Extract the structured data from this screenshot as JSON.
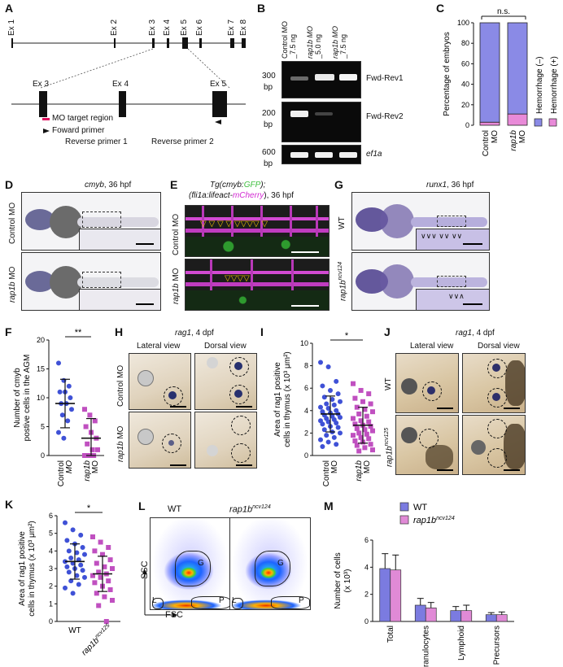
{
  "panels": {
    "A": "A",
    "B": "B",
    "C": "C",
    "D": "D",
    "E": "E",
    "F": "F",
    "G": "G",
    "H": "H",
    "I": "I",
    "J": "J",
    "K": "K",
    "L": "L",
    "M": "M"
  },
  "panelA": {
    "exons_top": [
      "Ex 1",
      "Ex 2",
      "Ex 3",
      "Ex 4",
      "Ex 5",
      "Ex 6",
      "Ex 7",
      "Ex 8"
    ],
    "exons_zoom": [
      "Ex 3",
      "Ex 4",
      "Ex 5"
    ],
    "mo_target": "MO target region",
    "forward_primer": "Foward primer",
    "reverse_primer_1": "Reverse primer 1",
    "reverse_primer_2": "Reverse primer 2",
    "colors": {
      "mo_target": "#e0115f"
    }
  },
  "panelB": {
    "lanes": [
      "Control MO",
      "_7.5 ng",
      "rap1b MO",
      "_5.0 ng",
      "rap1b MO",
      "_7.5 ng"
    ],
    "bp300": "300",
    "bp200": "200",
    "bp600": "600",
    "bp": "bp",
    "row1": "Fwd-Rev1",
    "row2": "Fwd-Rev2",
    "row3": "ef1a"
  },
  "panelC": {
    "ns": "n.s.",
    "ylabel": "Percentage of embryos",
    "ticks": [
      "0",
      "20",
      "40",
      "60",
      "80",
      "100"
    ],
    "xcat1a": "Control",
    "xcat1b": "MO",
    "xcat2a": "rap1b",
    "xcat2b": "MO",
    "legend_neg": "Hemorrhage (–)",
    "legend_pos": "Hemorrhage (+)"
  },
  "panelD": {
    "title_gene": "cmyb",
    "title_rest": ", 36 hpf",
    "row1": "Control MO",
    "row2a": "rap1b",
    "row2b": " MO"
  },
  "panelE": {
    "title_l1_a": "Tg(",
    "title_l1_b": "cmyb",
    "title_l1_c": ":",
    "title_l1_d": "GFP",
    "title_l1_e": ");",
    "title_l2_a": "(",
    "title_l2_b": "fli1a",
    "title_l2_c": ":lifeact-",
    "title_l2_d": "mCherry",
    "title_l2_e": "), 36 hpf",
    "row1": "Control MO",
    "row2a": "rap1b",
    "row2b": " MO"
  },
  "panelG": {
    "title_gene": "runx1",
    "title_rest": ", 36 hpf",
    "row1": "WT",
    "row2": "rap1b",
    "row2sup": "ncv124"
  },
  "panelF": {
    "ylabel_l1": "Number of ",
    "ylabel_l1_it": "cmyb",
    "ylabel_l2": "postive cells in the AGM",
    "ticks": [
      "0",
      "5",
      "10",
      "15",
      "20"
    ],
    "sig": "**",
    "x1a": "Control",
    "x1b": "MO",
    "x2a": "rap1b",
    "x2b": "MO"
  },
  "panelH": {
    "title_gene": "rag1",
    "title_rest": ", 4 dpf",
    "lateral": "Lateral view",
    "dorsal": "Dorsal view",
    "row1": "Control MO",
    "row2a": "rap1b",
    "row2b": " MO"
  },
  "panelI": {
    "ylabel_l1": "Area of ",
    "ylabel_l1_it": "rag1",
    "ylabel_l1_b": " positive",
    "ylabel_l2": "cells in thymus (x 10³ μm²)",
    "ticks": [
      "0",
      "2",
      "4",
      "6",
      "8",
      "10"
    ],
    "sig": "*",
    "x1a": "Control",
    "x1b": "MO",
    "x2a": "rap1b",
    "x2b": "MO"
  },
  "panelJ": {
    "title_gene": "rag1",
    "title_rest": ", 4 dpf",
    "lateral": "Lateral view",
    "dorsal": "Dorsal view",
    "row1": "WT",
    "row2": "rap1b",
    "row2sup": "ncv125"
  },
  "panelK": {
    "ylabel_l1": "Area of ",
    "ylabel_l1_it": "rag1",
    "ylabel_l1_b": " positive",
    "ylabel_l2": "cells in thymus (x 10³ μm²)",
    "ticks": [
      "0",
      "1",
      "2",
      "3",
      "4",
      "5",
      "6"
    ],
    "sig": "*",
    "x1": "WT",
    "x2": "rap1b",
    "x2sup": "ncv125"
  },
  "panelL": {
    "wt": "WT",
    "mut": "rap1b",
    "mutsup": "ncv124",
    "ssc": "SSC",
    "fsc": "FSC",
    "gate_g": "G",
    "gate_l": "L",
    "gate_p": "P"
  },
  "panelM": {
    "legend_wt": "WT",
    "legend_mut": "rap1b",
    "legend_mutsup": "ncv124",
    "ylabel_l1": "Number of cells",
    "ylabel_l2": "(x 10³)",
    "ticks": [
      "0",
      "2",
      "4",
      "6"
    ]
  },
  "chart_data": [
    {
      "id": "C",
      "type": "bar",
      "categories": [
        "Control MO",
        "rap1b MO"
      ],
      "series": [
        {
          "name": "Hemorrhage (–)",
          "values": [
            97,
            89
          ]
        },
        {
          "name": "Hemorrhage (+)",
          "values": [
            3,
            11
          ]
        }
      ],
      "stacked": true,
      "ylim": [
        0,
        100
      ],
      "colors": {
        "Hemorrhage (–)": "#8a8ae6",
        "Hemorrhage (+)": "#e88ad8"
      }
    },
    {
      "id": "F",
      "type": "scatter",
      "categories": [
        "Control MO",
        "rap1b MO"
      ],
      "ylim": [
        0,
        20
      ],
      "groups": [
        {
          "name": "Control MO",
          "color": "#3f51d6",
          "mean": 9,
          "sd": 4.2,
          "values": [
            16,
            13,
            12,
            11,
            11,
            10,
            9,
            9,
            8,
            7,
            6,
            4,
            3
          ]
        },
        {
          "name": "rap1b MO",
          "color": "#c050c0",
          "mean": 3,
          "sd": 3.4,
          "values": [
            8,
            7,
            6,
            5,
            4,
            3,
            2,
            1,
            1,
            0,
            0,
            0,
            0
          ]
        }
      ]
    },
    {
      "id": "I",
      "type": "scatter",
      "categories": [
        "Control MO",
        "rap1b MO"
      ],
      "ylim": [
        0,
        10
      ],
      "groups": [
        {
          "name": "Control MO",
          "color": "#3f51d6",
          "mean": 3.7,
          "sd": 1.6,
          "values": [
            8.3,
            7.9,
            6.6,
            6.2,
            5.8,
            5.5,
            5.2,
            5.0,
            4.8,
            4.6,
            4.5,
            4.3,
            4.2,
            4.0,
            3.9,
            3.8,
            3.7,
            3.6,
            3.5,
            3.4,
            3.3,
            3.2,
            3.1,
            3.0,
            2.9,
            2.8,
            2.6,
            2.5,
            2.3,
            2.1,
            2.0,
            1.8,
            1.6,
            1.4,
            1.2,
            1.0,
            0.8
          ]
        },
        {
          "name": "rap1b MO",
          "color": "#c050c0",
          "mean": 2.7,
          "sd": 1.6,
          "values": [
            6.4,
            5.8,
            5.5,
            5.1,
            4.8,
            4.6,
            4.3,
            4.1,
            3.9,
            3.7,
            3.5,
            3.3,
            3.1,
            3.0,
            2.8,
            2.7,
            2.6,
            2.4,
            2.3,
            2.2,
            2.0,
            1.9,
            1.8,
            1.6,
            1.5,
            1.3,
            1.2,
            1.0,
            0.9,
            0.7,
            0.5,
            0.4
          ]
        }
      ]
    },
    {
      "id": "K",
      "type": "scatter",
      "categories": [
        "WT",
        "rap1b ncv125"
      ],
      "ylim": [
        0,
        6
      ],
      "groups": [
        {
          "name": "WT",
          "color": "#3f51d6",
          "mean": 3.4,
          "sd": 1.0,
          "values": [
            5.6,
            5.2,
            4.9,
            4.6,
            4.4,
            4.2,
            4.0,
            3.9,
            3.8,
            3.6,
            3.5,
            3.4,
            3.3,
            3.2,
            3.1,
            3.0,
            2.9,
            2.8,
            2.6,
            2.5,
            2.3,
            2.1,
            1.9,
            1.6
          ]
        },
        {
          "name": "rap1b ncv125",
          "color": "#c050c0",
          "mean": 2.7,
          "sd": 1.0,
          "values": [
            4.8,
            4.5,
            4.2,
            4.0,
            3.8,
            3.5,
            3.3,
            3.1,
            3.0,
            2.8,
            2.7,
            2.6,
            2.5,
            2.3,
            2.2,
            2.0,
            1.8,
            1.6,
            1.4,
            1.2,
            0.9,
            0.0
          ]
        }
      ]
    },
    {
      "id": "M",
      "type": "bar",
      "categories": [
        "Total",
        "Granulocytes",
        "Lymphoid",
        "Precursors"
      ],
      "series": [
        {
          "name": "WT",
          "values": [
            3.9,
            1.2,
            0.8,
            0.5
          ],
          "errors": [
            1.1,
            0.5,
            0.3,
            0.15
          ],
          "color": "#7b7be0"
        },
        {
          "name": "rap1b ncv124",
          "values": [
            3.8,
            1.0,
            0.8,
            0.5
          ],
          "errors": [
            1.1,
            0.4,
            0.4,
            0.2
          ],
          "color": "#e08ad6"
        }
      ],
      "ylim": [
        0,
        6
      ]
    }
  ]
}
